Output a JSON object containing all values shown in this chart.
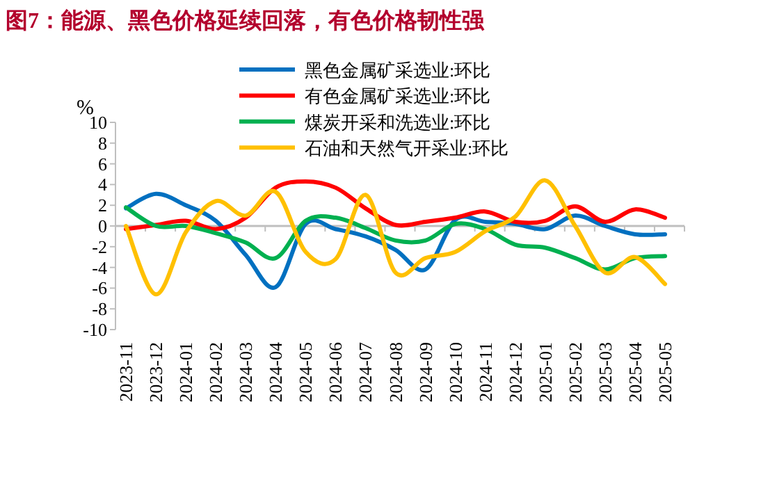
{
  "chart_data": {
    "type": "line",
    "title": "图7：能源、黑色价格延续回落，有色价格韧性强",
    "ylabel": "%",
    "categories": [
      "2023-11",
      "2023-12",
      "2024-01",
      "2024-02",
      "2024-03",
      "2024-04",
      "2024-05",
      "2024-06",
      "2024-07",
      "2024-08",
      "2024-09",
      "2024-10",
      "2024-11",
      "2024-12",
      "2025-01",
      "2025-02",
      "2025-03",
      "2025-04",
      "2025-05"
    ],
    "series": [
      {
        "name": "黑色金属矿采选业:环比",
        "color": "#0070c0",
        "values": [
          1.7,
          3.1,
          2.0,
          0.5,
          -2.8,
          -5.9,
          0.2,
          -0.3,
          -1.0,
          -2.3,
          -4.2,
          0.6,
          0.4,
          0.2,
          -0.3,
          1.0,
          0.0,
          -0.8,
          -0.8
        ]
      },
      {
        "name": "有色金属矿采选业:环比",
        "color": "#ff0000",
        "values": [
          -0.3,
          0.1,
          0.5,
          -0.3,
          0.8,
          3.7,
          4.3,
          3.7,
          1.7,
          0.1,
          0.4,
          0.8,
          1.4,
          0.4,
          0.5,
          1.9,
          0.4,
          1.6,
          0.8
        ]
      },
      {
        "name": "煤炭开采和洗选业:环比",
        "color": "#00b050",
        "values": [
          1.8,
          0.0,
          0.0,
          -0.7,
          -1.6,
          -3.1,
          0.5,
          0.8,
          -0.2,
          -1.4,
          -1.4,
          0.2,
          -0.3,
          -1.8,
          -2.1,
          -3.1,
          -4.2,
          -3.1,
          -2.9
        ]
      },
      {
        "name": "石油和天然气开采业:环比",
        "color": "#ffc000",
        "values": [
          0.0,
          -6.6,
          -0.6,
          2.4,
          1.0,
          3.3,
          -2.5,
          -3.2,
          3.0,
          -4.5,
          -3.1,
          -2.5,
          -0.5,
          0.9,
          4.4,
          0.0,
          -4.5,
          -3.0,
          -5.6
        ]
      }
    ],
    "ylim": [
      -10,
      10
    ],
    "yticks": [
      -10,
      -8,
      -6,
      -4,
      -2,
      0,
      2,
      4,
      6,
      8,
      10
    ],
    "legend": "top",
    "marker": "none",
    "line_style": "solid"
  }
}
